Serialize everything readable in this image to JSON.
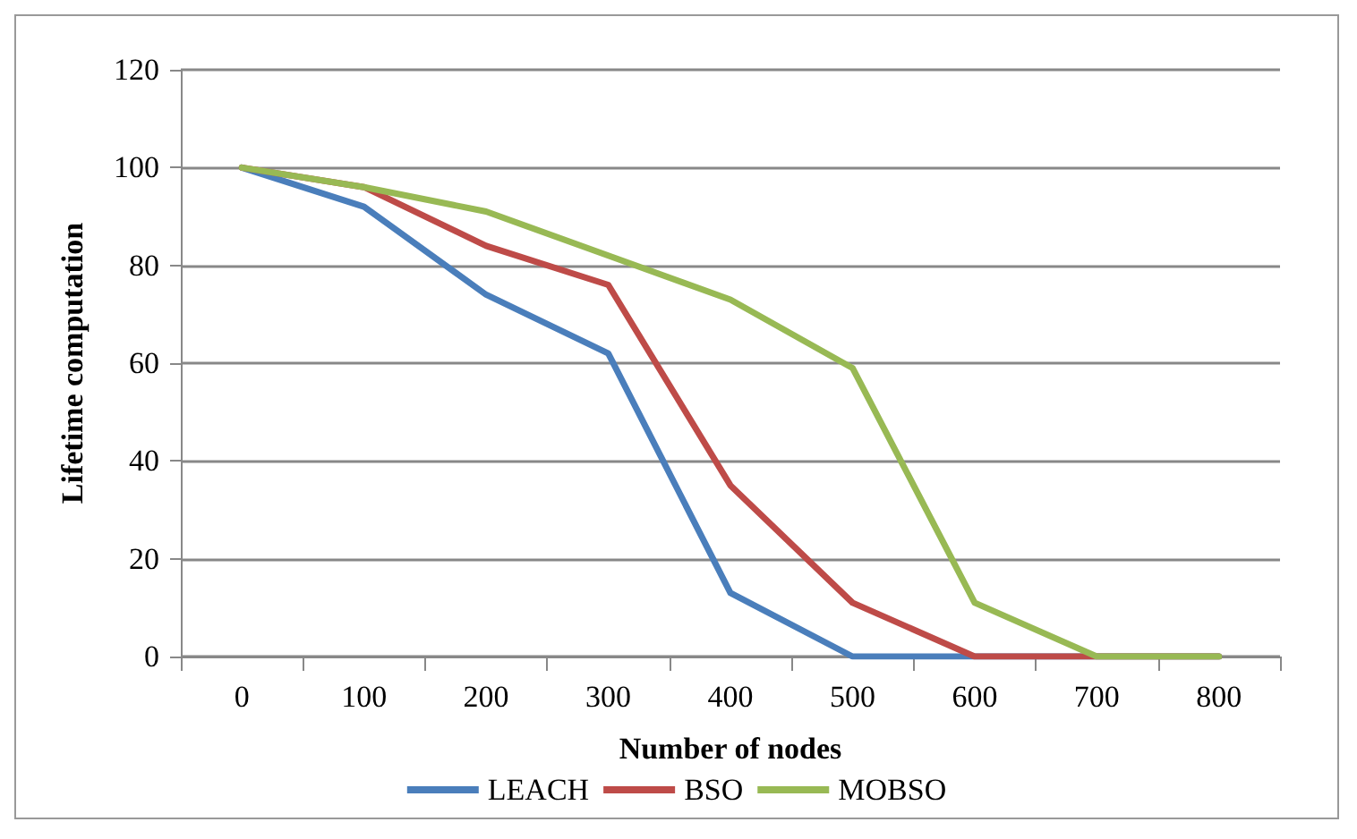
{
  "chart_data": {
    "type": "line",
    "xlabel": "Number of nodes",
    "ylabel": "Lifetime computation",
    "categories": [
      "0",
      "100",
      "200",
      "300",
      "400",
      "500",
      "600",
      "700",
      "800"
    ],
    "series": [
      {
        "name": "LEACH",
        "color": "#4a7ebb",
        "values": [
          100,
          92,
          74,
          62,
          13,
          0,
          0,
          0,
          0
        ]
      },
      {
        "name": "BSO",
        "color": "#be4b48",
        "values": [
          100,
          96,
          84,
          76,
          35,
          11,
          0,
          0,
          0
        ]
      },
      {
        "name": "MOBSO",
        "color": "#98b954",
        "values": [
          100,
          96,
          91,
          82,
          73,
          59,
          11,
          0,
          0
        ]
      }
    ],
    "ylim": [
      0,
      120
    ],
    "yticks": [
      0,
      20,
      40,
      60,
      80,
      100,
      120
    ],
    "grid": "y",
    "legend": "bottom",
    "marker": "none",
    "line_style": "solid"
  }
}
